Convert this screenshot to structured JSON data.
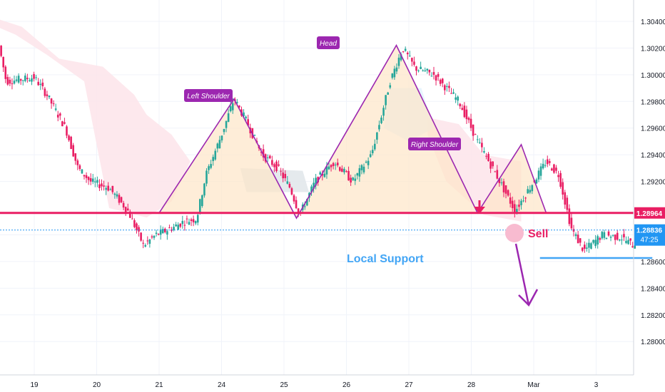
{
  "chart_data": {
    "type": "candlestick",
    "y_axis": {
      "min": 1.2775,
      "max": 1.3056,
      "ticks": [
        "1.30400",
        "1.30200",
        "1.30000",
        "1.29800",
        "1.29600",
        "1.29400",
        "1.29200",
        "1.28800",
        "1.28600",
        "1.28400",
        "1.28200",
        "1.28000"
      ],
      "position": "right"
    },
    "x_axis": {
      "ticks": [
        "19",
        "20",
        "21",
        "24",
        "25",
        "26",
        "27",
        "28",
        "Mar",
        "3"
      ]
    },
    "grid": true,
    "price_labels": {
      "resistance": {
        "value": 1.28964,
        "text": "1.28964",
        "color": "#e91e63"
      },
      "current": {
        "value": 1.28836,
        "text": "1.28836",
        "color": "#2196f3"
      },
      "countdown": {
        "text": "47:25"
      }
    },
    "annotations": {
      "left_shoulder": "Left Shoulder",
      "head": "Head",
      "right_shoulder": "Right Shoulder",
      "local_support": "Local Support",
      "sell": "Sell"
    },
    "neckline": 1.28964,
    "local_support": 1.28626,
    "pattern_points": [
      [
        0.8,
        1.28964
      ],
      [
        2.0,
        1.29818
      ],
      [
        3.0,
        1.28925
      ],
      [
        4.6,
        1.3022
      ],
      [
        5.9,
        1.28964
      ],
      [
        6.6,
        1.29476
      ],
      [
        7.0,
        1.28964
      ]
    ],
    "colors": {
      "bull": "#26a69a",
      "bear": "#e91e63",
      "pattern": "#9c27b0",
      "support": "#42a5f5"
    }
  }
}
